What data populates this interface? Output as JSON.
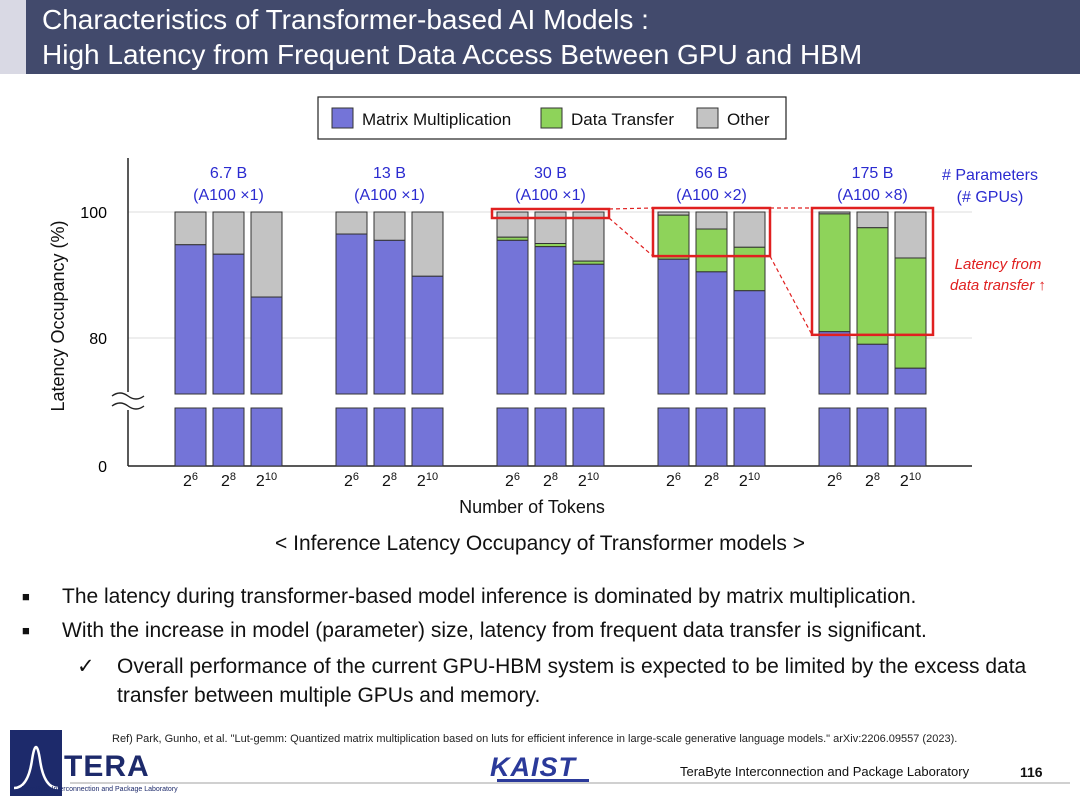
{
  "title": {
    "line1": "Characteristics of Transformer-based AI Models :",
    "line2": "High Latency from Frequent Data Access Between GPU and HBM"
  },
  "chart_data": {
    "type": "bar",
    "stacked": true,
    "ylabel": "Latency Occupancy (%)",
    "xlabel": "Number of Tokens",
    "ylim": [
      0,
      100
    ],
    "axis_break": true,
    "y_ticks": [
      "100",
      "80",
      "0"
    ],
    "legend": {
      "placement": "top",
      "entries": [
        "Matrix Multiplication",
        "Data Transfer",
        "Other"
      ]
    },
    "series_colors": {
      "Matrix Multiplication": "#7474d8",
      "Data Transfer": "#8ed35a",
      "Other": "#c3c3c3"
    },
    "groups_header": "# Parameters",
    "groups_header_sub": "(# GPUs)",
    "groups": [
      {
        "name": "6.7 B",
        "gpus": "(A100 ×1)",
        "highlighted": false,
        "bars": [
          {
            "tokens_base": "2",
            "tokens_exp": "6",
            "matmul": 94.8,
            "transfer": 0,
            "other": 5.2
          },
          {
            "tokens_base": "2",
            "tokens_exp": "8",
            "matmul": 93.3,
            "transfer": 0,
            "other": 6.7
          },
          {
            "tokens_base": "2",
            "tokens_exp": "10",
            "matmul": 86.5,
            "transfer": 0,
            "other": 13.5
          }
        ]
      },
      {
        "name": "13 B",
        "gpus": "(A100 ×1)",
        "highlighted": false,
        "bars": [
          {
            "tokens_base": "2",
            "tokens_exp": "6",
            "matmul": 96.5,
            "transfer": 0,
            "other": 3.5
          },
          {
            "tokens_base": "2",
            "tokens_exp": "8",
            "matmul": 95.5,
            "transfer": 0,
            "other": 4.5
          },
          {
            "tokens_base": "2",
            "tokens_exp": "10",
            "matmul": 89.8,
            "transfer": 0,
            "other": 10.2
          }
        ]
      },
      {
        "name": "30 B",
        "gpus": "(A100 ×1)",
        "highlighted": true,
        "bars": [
          {
            "tokens_base": "2",
            "tokens_exp": "6",
            "matmul": 95.5,
            "transfer": 0.5,
            "other": 4.0
          },
          {
            "tokens_base": "2",
            "tokens_exp": "8",
            "matmul": 94.5,
            "transfer": 0.5,
            "other": 5.0
          },
          {
            "tokens_base": "2",
            "tokens_exp": "10",
            "matmul": 91.7,
            "transfer": 0.5,
            "other": 7.8
          }
        ]
      },
      {
        "name": "66 B",
        "gpus": "(A100 ×2)",
        "highlighted": true,
        "bars": [
          {
            "tokens_base": "2",
            "tokens_exp": "6",
            "matmul": 92.5,
            "transfer": 7.0,
            "other": 0.5
          },
          {
            "tokens_base": "2",
            "tokens_exp": "8",
            "matmul": 90.5,
            "transfer": 6.8,
            "other": 2.7
          },
          {
            "tokens_base": "2",
            "tokens_exp": "10",
            "matmul": 87.5,
            "transfer": 6.9,
            "other": 5.6
          }
        ]
      },
      {
        "name": "175 B",
        "gpus": "(A100 ×8)",
        "highlighted": true,
        "bars": [
          {
            "tokens_base": "2",
            "tokens_exp": "6",
            "matmul": 81.0,
            "transfer": 18.7,
            "other": 0.3
          },
          {
            "tokens_base": "2",
            "tokens_exp": "8",
            "matmul": 79.0,
            "transfer": 18.5,
            "other": 2.5
          },
          {
            "tokens_base": "2",
            "tokens_exp": "10",
            "matmul": 75.2,
            "transfer": 17.5,
            "other": 7.3
          }
        ]
      }
    ],
    "annotation": {
      "line1": "Latency from",
      "line2": "data transfer ↑"
    }
  },
  "caption": "< Inference Latency Occupancy of Transformer models >",
  "bullets": [
    "The latency during transformer-based model inference is dominated by matrix multiplication.",
    "With the increase in model (parameter) size, latency from frequent data transfer is significant."
  ],
  "sub_bullet": "Overall performance of the current GPU-HBM system is expected to be limited by the excess data transfer between multiple GPUs and memory.",
  "reference": "Ref) Park, Gunho, et al. \"Lut-gemm: Quantized matrix multiplication based on luts for efficient inference in large-scale generative language models.\" arXiv:2206.09557 (2023).",
  "footer": {
    "logo_text": "TERA",
    "logo_subtext": "TeraByte Interconnection and Package Laboratory",
    "university": "KAIST",
    "lab_name": "TeraByte Interconnection and Package Laboratory",
    "page_number": "116"
  }
}
